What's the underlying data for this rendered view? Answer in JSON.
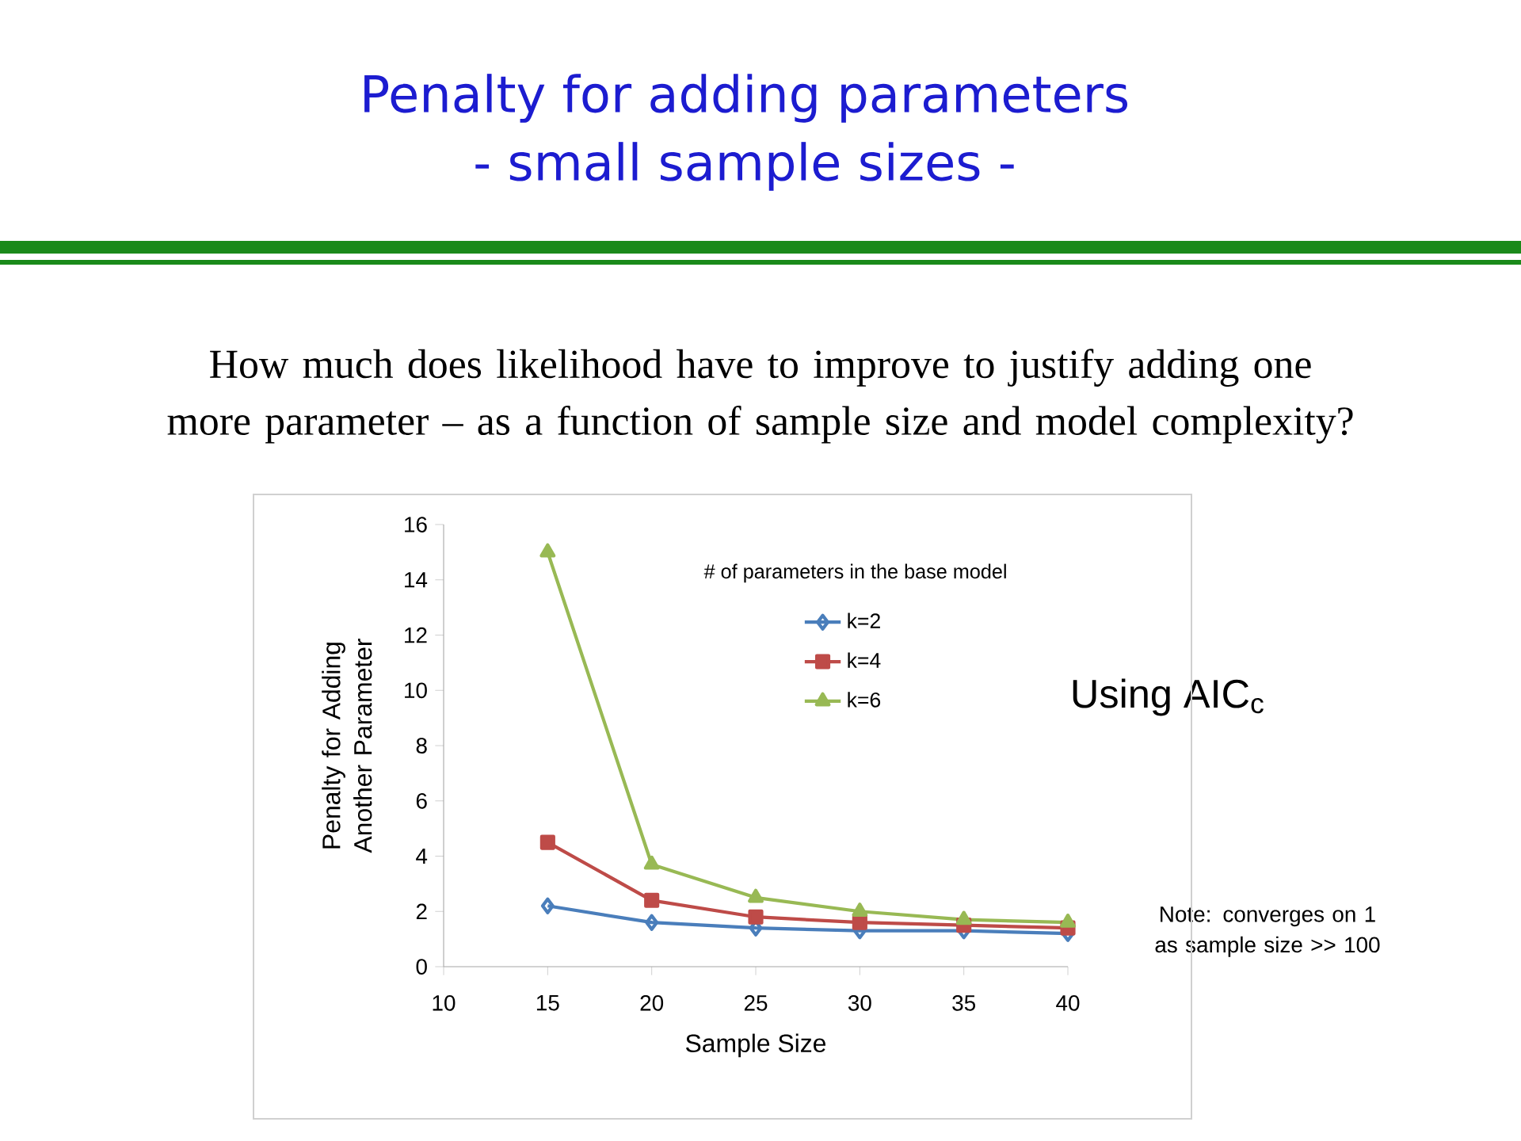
{
  "chart_data": {
    "type": "line",
    "title": "Penalty for adding parameters",
    "subtitle": "- small sample sizes -",
    "xlabel": "Sample Size",
    "ylabel": "Penalty for Adding Another Parameter",
    "legend_title": "# of parameters in the base model",
    "annotations": [
      "How much does likelihood have to improve to justify adding one more parameter – as a function of sample size and model complexity?",
      "Using AIC$_{c}$",
      "Note: converges on 1 as sample size >> 100"
    ],
    "x": [
      15,
      20,
      25,
      30,
      35,
      40
    ],
    "series": [
      {
        "name": "k=2",
        "color": "#4a7ebb",
        "marker": "diamond",
        "values": [
          2.2,
          1.6,
          1.4,
          1.3,
          1.3,
          1.2
        ]
      },
      {
        "name": "k=4",
        "color": "#be4b48",
        "marker": "square",
        "values": [
          4.5,
          2.4,
          1.8,
          1.6,
          1.5,
          1.4
        ]
      },
      {
        "name": "k=6",
        "color": "#98b954",
        "marker": "triangle",
        "values": [
          15,
          3.7,
          2.5,
          2.0,
          1.7,
          1.6
        ]
      }
    ],
    "xlim": [
      10,
      40
    ],
    "xticks": [
      10,
      15,
      20,
      25,
      30,
      35,
      40
    ],
    "ylim": [
      0,
      16
    ],
    "yticks": [
      0,
      2,
      4,
      6,
      8,
      10,
      12,
      14,
      16
    ],
    "legend": "top right",
    "grid": false
  }
}
